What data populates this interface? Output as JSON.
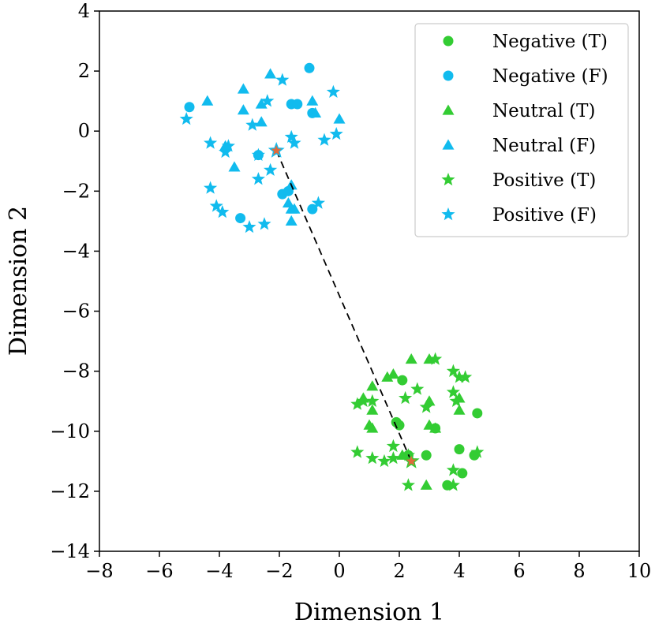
{
  "chart_data": {
    "type": "scatter",
    "xlabel": "Dimension 1",
    "ylabel": "Dimension 2",
    "xlim": [
      -8,
      10
    ],
    "ylim": [
      -14,
      4
    ],
    "xticks": [
      -8,
      -6,
      -4,
      -2,
      0,
      2,
      4,
      6,
      8,
      10
    ],
    "yticks": [
      -14,
      -12,
      -10,
      -8,
      -6,
      -4,
      -2,
      0,
      2,
      4
    ],
    "xtick_labels": [
      "−8",
      "−6",
      "−4",
      "−2",
      "0",
      "2",
      "4",
      "6",
      "8",
      "10"
    ],
    "ytick_labels": [
      "−14",
      "−12",
      "−10",
      "−8",
      "−6",
      "−4",
      "−2",
      "0",
      "2",
      "4"
    ],
    "grid": false,
    "legend_position": "top-right",
    "colors": {
      "T": "#33cc33",
      "F": "#11bbee",
      "highlight_fill": "#e06a3c",
      "connector": "#000000"
    },
    "series": [
      {
        "name": "Negative (T)",
        "marker": "circle",
        "group": "T",
        "points": [
          [
            2.1,
            -8.3
          ],
          [
            1.9,
            -9.7
          ],
          [
            2.0,
            -9.8
          ],
          [
            3.2,
            -9.9
          ],
          [
            4.6,
            -9.4
          ],
          [
            2.3,
            -10.8
          ],
          [
            2.9,
            -10.8
          ],
          [
            4.0,
            -10.6
          ],
          [
            4.5,
            -10.8
          ],
          [
            4.1,
            -11.4
          ],
          [
            3.6,
            -11.8
          ]
        ]
      },
      {
        "name": "Negative (F)",
        "marker": "circle",
        "group": "F",
        "points": [
          [
            -5.0,
            0.8
          ],
          [
            -1.6,
            0.9
          ],
          [
            -1.4,
            0.9
          ],
          [
            -1.0,
            2.1
          ],
          [
            -0.9,
            0.6
          ],
          [
            -2.7,
            -0.8
          ],
          [
            -1.9,
            -2.1
          ],
          [
            -1.7,
            -2.0
          ],
          [
            -0.9,
            -2.6
          ],
          [
            -3.3,
            -2.9
          ]
        ]
      },
      {
        "name": "Neutral (T)",
        "marker": "triangle",
        "group": "T",
        "points": [
          [
            1.6,
            -8.2
          ],
          [
            1.8,
            -8.1
          ],
          [
            2.4,
            -7.6
          ],
          [
            3.0,
            -7.6
          ],
          [
            1.1,
            -8.5
          ],
          [
            0.8,
            -8.9
          ],
          [
            1.1,
            -9.3
          ],
          [
            3.0,
            -9.0
          ],
          [
            4.0,
            -8.9
          ],
          [
            1.0,
            -9.8
          ],
          [
            1.1,
            -9.9
          ],
          [
            3.0,
            -9.8
          ],
          [
            3.2,
            -9.9
          ],
          [
            4.0,
            -9.3
          ],
          [
            2.1,
            -10.8
          ],
          [
            2.9,
            -11.8
          ]
        ]
      },
      {
        "name": "Neutral (F)",
        "marker": "triangle",
        "group": "F",
        "points": [
          [
            -4.4,
            1.0
          ],
          [
            -3.2,
            1.4
          ],
          [
            -3.2,
            0.7
          ],
          [
            -2.6,
            0.9
          ],
          [
            -2.6,
            0.3
          ],
          [
            -2.3,
            1.9
          ],
          [
            -0.9,
            1.0
          ],
          [
            -0.8,
            0.6
          ],
          [
            0.0,
            0.4
          ],
          [
            -3.5,
            -1.2
          ],
          [
            -3.8,
            -0.5
          ],
          [
            -1.6,
            -1.8
          ],
          [
            -1.7,
            -2.4
          ],
          [
            -1.6,
            -2.6
          ],
          [
            -1.5,
            -2.6
          ],
          [
            -1.6,
            -3.0
          ]
        ]
      },
      {
        "name": "Positive (T)",
        "marker": "star",
        "group": "T",
        "points": [
          [
            3.2,
            -7.6
          ],
          [
            3.8,
            -8.0
          ],
          [
            4.2,
            -8.2
          ],
          [
            4.0,
            -8.2
          ],
          [
            0.6,
            -9.1
          ],
          [
            0.8,
            -9.0
          ],
          [
            2.6,
            -8.6
          ],
          [
            2.2,
            -8.9
          ],
          [
            3.8,
            -8.7
          ],
          [
            3.9,
            -9.0
          ],
          [
            1.1,
            -9.0
          ],
          [
            2.9,
            -9.2
          ],
          [
            1.8,
            -10.5
          ],
          [
            0.6,
            -10.7
          ],
          [
            1.1,
            -10.9
          ],
          [
            1.5,
            -11.0
          ],
          [
            1.8,
            -10.9
          ],
          [
            2.3,
            -10.8
          ],
          [
            3.8,
            -11.3
          ],
          [
            4.6,
            -10.7
          ],
          [
            2.3,
            -11.8
          ],
          [
            3.8,
            -11.8
          ]
        ]
      },
      {
        "name": "Positive (F)",
        "marker": "star",
        "group": "F",
        "points": [
          [
            -5.1,
            0.4
          ],
          [
            -2.9,
            0.2
          ],
          [
            -2.4,
            1.0
          ],
          [
            -1.9,
            1.7
          ],
          [
            -0.2,
            1.3
          ],
          [
            -4.3,
            -0.4
          ],
          [
            -3.7,
            -0.5
          ],
          [
            -3.8,
            -0.7
          ],
          [
            -2.7,
            -0.8
          ],
          [
            -1.6,
            -0.2
          ],
          [
            -1.5,
            -0.4
          ],
          [
            -0.5,
            -0.3
          ],
          [
            -0.1,
            -0.1
          ],
          [
            -2.7,
            -1.6
          ],
          [
            -2.3,
            -1.3
          ],
          [
            -4.3,
            -1.9
          ],
          [
            -4.1,
            -2.5
          ],
          [
            -3.9,
            -2.7
          ],
          [
            -3.0,
            -3.2
          ],
          [
            -2.5,
            -3.1
          ],
          [
            -0.7,
            -2.4
          ]
        ]
      }
    ],
    "highlighted_points": [
      [
        -2.1,
        -0.65
      ],
      [
        2.4,
        -11.0
      ]
    ],
    "connector_line": {
      "from": [
        -2.1,
        -0.65
      ],
      "to": [
        2.4,
        -11.0
      ],
      "style": "dashed"
    }
  }
}
